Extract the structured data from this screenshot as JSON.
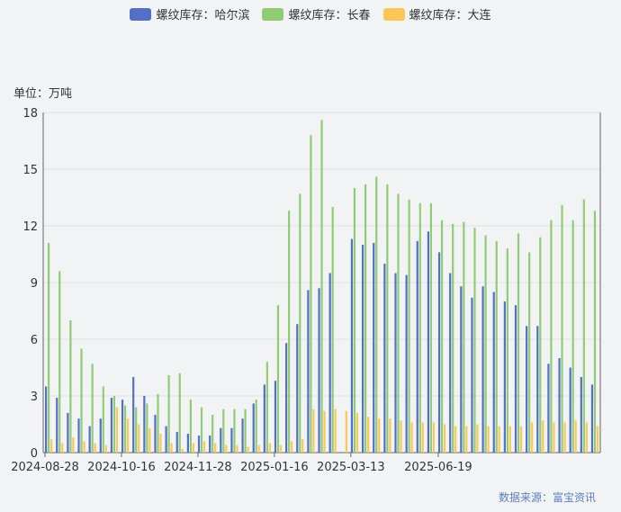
{
  "legend": [
    {
      "label": "螺纹库存：哈尔滨",
      "color": "#5470c6"
    },
    {
      "label": "螺纹库存：长春",
      "color": "#91cc75"
    },
    {
      "label": "螺纹库存：大连",
      "color": "#fac858"
    }
  ],
  "unit_label": "单位：万吨",
  "source_label": "数据来源：富宝资讯",
  "chart_data": {
    "type": "bar",
    "ylim": [
      0,
      18
    ],
    "yticks": [
      "0",
      "3",
      "6",
      "9",
      "12",
      "15",
      "18"
    ],
    "xtick_labels": [
      "2024-08-28",
      "2024-10-16",
      "2024-11-28",
      "2025-01-16",
      "2025-03-13",
      "2025-06-19"
    ],
    "xtick_index": [
      0,
      7,
      14,
      21,
      28,
      36
    ],
    "grid": true,
    "legend_position": "top",
    "series": [
      {
        "name": "螺纹库存：哈尔滨",
        "color": "#5470c6",
        "values": [
          3.5,
          2.9,
          2.1,
          1.8,
          1.4,
          1.8,
          2.9,
          2.8,
          4.0,
          3.0,
          2.0,
          1.4,
          1.1,
          1.0,
          0.9,
          0.9,
          1.3,
          1.3,
          1.8,
          2.6,
          3.6,
          3.8,
          5.8,
          6.8,
          8.6,
          8.7,
          9.5,
          null,
          11.3,
          11.0,
          11.1,
          10.0,
          9.5,
          9.4,
          11.2,
          11.7,
          10.6,
          9.5,
          8.8,
          8.2,
          8.8,
          8.5,
          8.0,
          7.8,
          6.7,
          6.7,
          4.7,
          5.0,
          4.5,
          4.0,
          3.6
        ]
      },
      {
        "name": "螺纹库存：长春",
        "color": "#91cc75",
        "values": [
          11.1,
          9.6,
          7.0,
          5.5,
          4.7,
          3.5,
          3.0,
          2.5,
          2.4,
          2.6,
          3.1,
          4.1,
          4.2,
          2.8,
          2.4,
          2.0,
          2.3,
          2.3,
          2.3,
          2.8,
          4.8,
          7.8,
          12.8,
          13.7,
          16.8,
          17.6,
          13.0,
          null,
          14.0,
          14.2,
          14.6,
          14.2,
          13.7,
          13.4,
          13.2,
          13.2,
          12.3,
          12.1,
          12.2,
          11.9,
          11.5,
          11.2,
          10.8,
          11.6,
          10.6,
          11.4,
          12.3,
          13.1,
          12.3,
          13.4,
          12.8
        ]
      },
      {
        "name": "螺纹库存：大连",
        "color": "#fac858",
        "values": [
          0.7,
          0.5,
          0.8,
          0.6,
          0.5,
          0.4,
          2.4,
          1.8,
          1.5,
          1.3,
          1.0,
          0.5,
          0.2,
          0.5,
          0.6,
          0.5,
          0.4,
          0.4,
          0.3,
          0.4,
          0.5,
          0.4,
          0.6,
          0.7,
          2.3,
          2.2,
          2.3,
          2.2,
          2.1,
          1.9,
          1.8,
          1.8,
          1.7,
          1.6,
          1.6,
          1.6,
          1.5,
          1.4,
          1.4,
          1.5,
          1.4,
          1.4,
          1.4,
          1.4,
          1.6,
          1.7,
          1.6,
          1.6,
          1.7,
          1.6,
          1.4
        ]
      }
    ]
  }
}
